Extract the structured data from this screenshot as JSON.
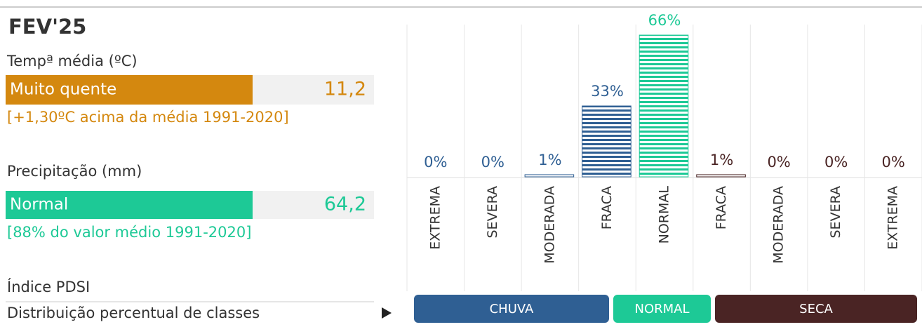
{
  "header": {
    "title": "FEV'25"
  },
  "temperature": {
    "label": "Tempª média (ºC)",
    "class": "Muito quente",
    "value": "11,2",
    "note": "[+1,30ºC acima da média 1991-2020]",
    "color": "#d4880f"
  },
  "precipitation": {
    "label": "Precipitação (mm)",
    "class": "Normal",
    "value": "64,2",
    "note": "[88% do valor médio 1991-2020]",
    "color": "#1dc996"
  },
  "pdsi": {
    "label": "Índice PDSI",
    "subtitle": "Distribuição percentual de classes"
  },
  "chart_data": {
    "type": "bar",
    "categories": [
      "EXTREMA",
      "SEVERA",
      "MODERADA",
      "FRACA",
      "NORMAL",
      "FRACA",
      "MODERADA",
      "SEVERA",
      "EXTREMA"
    ],
    "values": [
      0,
      0,
      1,
      33,
      66,
      1,
      0,
      0,
      0
    ],
    "value_labels": [
      "0%",
      "0%",
      "1%",
      "33%",
      "66%",
      "1%",
      "0%",
      "0%",
      "0%"
    ],
    "colors": [
      "#2f5f93",
      "#2f5f93",
      "#2f5f93",
      "#2f5f93",
      "#1dc996",
      "#4a2424",
      "#4a2424",
      "#4a2424",
      "#4a2424"
    ],
    "groups": [
      "CHUVA",
      "NORMAL",
      "SECA"
    ],
    "group_colors": [
      "#2f5f93",
      "#1dc996",
      "#4a2424"
    ]
  }
}
